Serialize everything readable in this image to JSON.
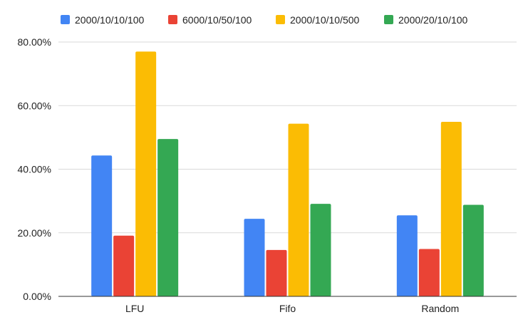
{
  "chart_data": {
    "type": "bar",
    "categories": [
      "LFU",
      "Fifo",
      "Random"
    ],
    "series": [
      {
        "name": "2000/10/10/100",
        "color": "#4285f4",
        "values": [
          0.443,
          0.244,
          0.255
        ]
      },
      {
        "name": "6000/10/50/100",
        "color": "#ea4335",
        "values": [
          0.191,
          0.146,
          0.149
        ]
      },
      {
        "name": "2000/10/10/500",
        "color": "#fbbc04",
        "values": [
          0.77,
          0.543,
          0.549
        ]
      },
      {
        "name": "2000/20/10/100",
        "color": "#34a853",
        "values": [
          0.495,
          0.291,
          0.288
        ]
      }
    ],
    "y_ticks": [
      "0.00%",
      "20.00%",
      "40.00%",
      "60.00%",
      "80.00%"
    ],
    "ylim": [
      0,
      0.8
    ],
    "legend_position": "top",
    "grid": true
  }
}
